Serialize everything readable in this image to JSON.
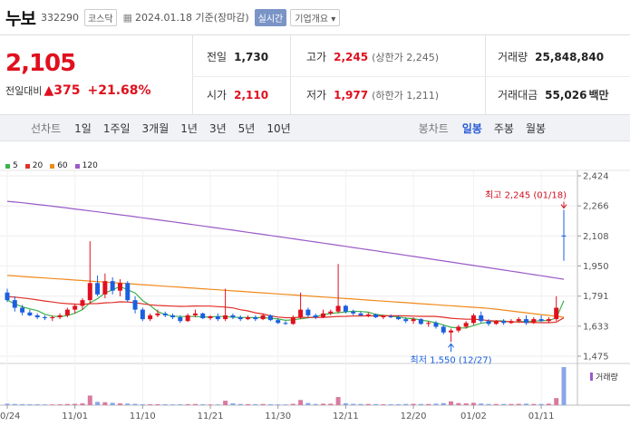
{
  "header": {
    "name": "누보",
    "code": "332290",
    "market": "코스닥",
    "date_text": "2024.01.18 기준(장마감)",
    "realtime": "실시간",
    "company_info": "기업개요 ▾"
  },
  "quote": {
    "price": "2,105",
    "change_label": "전일대비",
    "change_amount": "375",
    "change_percent": "+21.68%",
    "prev_label": "전일",
    "prev_value": "1,730",
    "open_label": "시가",
    "open_value": "2,110",
    "high_label": "고가",
    "high_value": "2,245",
    "high_sub": "(상한가 2,245)",
    "low_label": "저가",
    "low_value": "1,977",
    "low_sub": "(하한가 1,211)",
    "volume_label": "거래량",
    "volume_value": "25,848,840",
    "amount_label": "거래대금",
    "amount_value": "55,026",
    "amount_unit": "백만"
  },
  "tabs": {
    "line_chart": "선차트",
    "periods": [
      "1일",
      "1주일",
      "3개월",
      "1년",
      "3년",
      "5년",
      "10년"
    ],
    "candle_chart": "봉차트",
    "candle_periods": [
      "일봉",
      "주봉",
      "월봉"
    ],
    "active_candle": "일봉"
  },
  "colors": {
    "up": "#e0101e",
    "down": "#1a5fe0",
    "ma5": "#3cb34a",
    "ma20": "#e0302a",
    "ma60": "#f08a1c",
    "ma120": "#9a5ac8"
  },
  "chart_data": {
    "type": "candlestick",
    "legend": [
      {
        "name": "5",
        "color": "#3cb34a"
      },
      {
        "name": "20",
        "color": "#e0302a"
      },
      {
        "name": "60",
        "color": "#f08a1c"
      },
      {
        "name": "120",
        "color": "#9a5ac8"
      }
    ],
    "y_ticks": [
      "2,424",
      "2,266",
      "2,108",
      "1,950",
      "1,791",
      "1,633",
      "1,475"
    ],
    "y_tick_values": [
      2424,
      2266,
      2108,
      1950,
      1791,
      1633,
      1475
    ],
    "ylim": [
      1475,
      2424
    ],
    "x_ticks": [
      "10/24",
      "11/01",
      "11/10",
      "11/21",
      "11/30",
      "12/11",
      "12/20",
      "01/02",
      "01/11"
    ],
    "annotation_high": "최고 2,245 (01/18)",
    "annotation_low": "최저 1,550 (12/27)",
    "volume_label": "거래량",
    "candles": [
      [
        1810,
        1830,
        1760,
        1770
      ],
      [
        1770,
        1790,
        1710,
        1730
      ],
      [
        1730,
        1745,
        1690,
        1705
      ],
      [
        1705,
        1720,
        1685,
        1690
      ],
      [
        1690,
        1700,
        1670,
        1680
      ],
      [
        1680,
        1690,
        1665,
        1675
      ],
      [
        1675,
        1690,
        1660,
        1680
      ],
      [
        1680,
        1700,
        1670,
        1690
      ],
      [
        1690,
        1730,
        1680,
        1720
      ],
      [
        1720,
        1750,
        1700,
        1740
      ],
      [
        1740,
        1780,
        1720,
        1770
      ],
      [
        1770,
        2080,
        1750,
        1860
      ],
      [
        1860,
        1900,
        1790,
        1800
      ],
      [
        1800,
        1910,
        1780,
        1870
      ],
      [
        1870,
        1890,
        1800,
        1820
      ],
      [
        1820,
        1880,
        1790,
        1860
      ],
      [
        1860,
        1870,
        1760,
        1770
      ],
      [
        1770,
        1790,
        1700,
        1720
      ],
      [
        1720,
        1730,
        1660,
        1670
      ],
      [
        1670,
        1700,
        1660,
        1690
      ],
      [
        1690,
        1720,
        1680,
        1700
      ],
      [
        1700,
        1710,
        1680,
        1690
      ],
      [
        1690,
        1700,
        1670,
        1680
      ],
      [
        1680,
        1690,
        1650,
        1660
      ],
      [
        1660,
        1700,
        1655,
        1690
      ],
      [
        1690,
        1720,
        1680,
        1700
      ],
      [
        1700,
        1705,
        1670,
        1675
      ],
      [
        1675,
        1690,
        1665,
        1685
      ],
      [
        1685,
        1700,
        1660,
        1670
      ],
      [
        1670,
        1830,
        1660,
        1690
      ],
      [
        1690,
        1700,
        1670,
        1680
      ],
      [
        1680,
        1690,
        1660,
        1670
      ],
      [
        1670,
        1690,
        1665,
        1680
      ],
      [
        1680,
        1690,
        1660,
        1670
      ],
      [
        1670,
        1700,
        1665,
        1690
      ],
      [
        1690,
        1695,
        1660,
        1665
      ],
      [
        1665,
        1675,
        1645,
        1650
      ],
      [
        1650,
        1660,
        1640,
        1645
      ],
      [
        1645,
        1690,
        1640,
        1680
      ],
      [
        1680,
        1810,
        1670,
        1720
      ],
      [
        1720,
        1730,
        1680,
        1690
      ],
      [
        1690,
        1700,
        1670,
        1680
      ],
      [
        1680,
        1720,
        1675,
        1700
      ],
      [
        1700,
        1720,
        1690,
        1710
      ],
      [
        1710,
        1960,
        1700,
        1740
      ],
      [
        1740,
        1745,
        1700,
        1710
      ],
      [
        1710,
        1720,
        1690,
        1700
      ],
      [
        1700,
        1710,
        1685,
        1690
      ],
      [
        1690,
        1705,
        1680,
        1695
      ],
      [
        1695,
        1700,
        1675,
        1680
      ],
      [
        1680,
        1690,
        1670,
        1685
      ],
      [
        1685,
        1695,
        1675,
        1680
      ],
      [
        1680,
        1690,
        1665,
        1670
      ],
      [
        1670,
        1680,
        1650,
        1660
      ],
      [
        1660,
        1680,
        1645,
        1670
      ],
      [
        1670,
        1675,
        1640,
        1645
      ],
      [
        1645,
        1660,
        1630,
        1650
      ],
      [
        1650,
        1660,
        1620,
        1630
      ],
      [
        1630,
        1640,
        1590,
        1600
      ],
      [
        1600,
        1620,
        1550,
        1610
      ],
      [
        1610,
        1640,
        1600,
        1630
      ],
      [
        1630,
        1660,
        1620,
        1650
      ],
      [
        1650,
        1700,
        1640,
        1690
      ],
      [
        1690,
        1710,
        1650,
        1660
      ],
      [
        1660,
        1670,
        1635,
        1645
      ],
      [
        1645,
        1665,
        1640,
        1660
      ],
      [
        1660,
        1670,
        1640,
        1650
      ],
      [
        1650,
        1670,
        1645,
        1660
      ],
      [
        1660,
        1680,
        1650,
        1670
      ],
      [
        1670,
        1690,
        1640,
        1650
      ],
      [
        1650,
        1680,
        1645,
        1670
      ],
      [
        1670,
        1690,
        1655,
        1660
      ],
      [
        1660,
        1680,
        1650,
        1670
      ],
      [
        1670,
        1790,
        1660,
        1730
      ],
      [
        2110,
        2245,
        1977,
        2105
      ]
    ],
    "volumes": [
      1.0,
      0.8,
      0.7,
      0.6,
      0.6,
      0.5,
      0.5,
      0.6,
      0.8,
      0.9,
      1.2,
      6.5,
      2.2,
      2.0,
      1.6,
      1.2,
      1.1,
      0.9,
      0.6,
      0.6,
      0.7,
      0.6,
      0.5,
      0.6,
      0.7,
      0.8,
      0.6,
      0.5,
      0.5,
      3.0,
      1.2,
      0.8,
      0.7,
      0.6,
      0.8,
      0.6,
      0.5,
      0.5,
      0.9,
      3.5,
      1.5,
      0.8,
      1.0,
      1.0,
      5.5,
      1.3,
      0.9,
      0.8,
      0.8,
      0.7,
      0.6,
      0.6,
      0.6,
      0.8,
      0.9,
      0.8,
      0.8,
      1.0,
      1.4,
      2.6,
      1.4,
      1.2,
      1.6,
      1.1,
      0.8,
      0.8,
      0.8,
      0.8,
      0.9,
      1.0,
      0.8,
      0.8,
      1.0,
      4.8,
      25.8
    ]
  }
}
